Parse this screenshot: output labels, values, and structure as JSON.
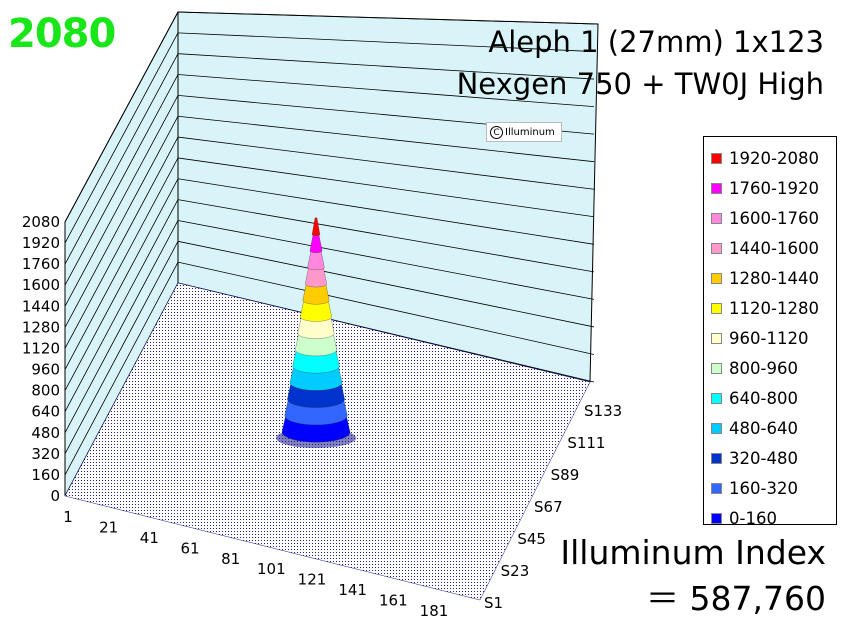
{
  "peak_label": "2080",
  "peak_label_color": "#19e619",
  "title_line1": "Aleph 1 (27mm) 1x123",
  "title_line2": "Nexgen 750 + TW0J High",
  "copyright_text": "Illuminum",
  "index_label": "Illuminum Index",
  "index_value": "＝ 587,760",
  "chart_data": {
    "type": "surface3d",
    "title": "Aleph 1 (27mm) 1x123 Nexgen 750 + TW0J High",
    "z_ticks": [
      "0",
      "160",
      "320",
      "480",
      "640",
      "800",
      "960",
      "1120",
      "1280",
      "1440",
      "1600",
      "1760",
      "1920",
      "2080"
    ],
    "zlim": [
      0,
      2080
    ],
    "x_ticks": [
      "1",
      "21",
      "41",
      "61",
      "81",
      "101",
      "121",
      "141",
      "161",
      "181"
    ],
    "y_ticks": [
      "S1",
      "S23",
      "S45",
      "S67",
      "S89",
      "S111",
      "S133"
    ],
    "peak_value": 2080,
    "peak_position": {
      "x": 91,
      "y": 67
    },
    "legend": [
      {
        "label": "1920-2080",
        "color": "#ff0000"
      },
      {
        "label": "1760-1920",
        "color": "#ff00ff"
      },
      {
        "label": "1600-1760",
        "color": "#ff88dd"
      },
      {
        "label": "1440-1600",
        "color": "#ff99cc"
      },
      {
        "label": "1280-1440",
        "color": "#ffcc00"
      },
      {
        "label": "1120-1280",
        "color": "#ffff00"
      },
      {
        "label": "960-1120",
        "color": "#ffffcc"
      },
      {
        "label": "800-960",
        "color": "#ccffcc"
      },
      {
        "label": "640-800",
        "color": "#00ffff"
      },
      {
        "label": "480-640",
        "color": "#00ccff"
      },
      {
        "label": "320-480",
        "color": "#0033cc"
      },
      {
        "label": "160-320",
        "color": "#3366ff"
      },
      {
        "label": "0-160",
        "color": "#0000ff"
      }
    ],
    "grid": true,
    "legend_position": "right"
  }
}
